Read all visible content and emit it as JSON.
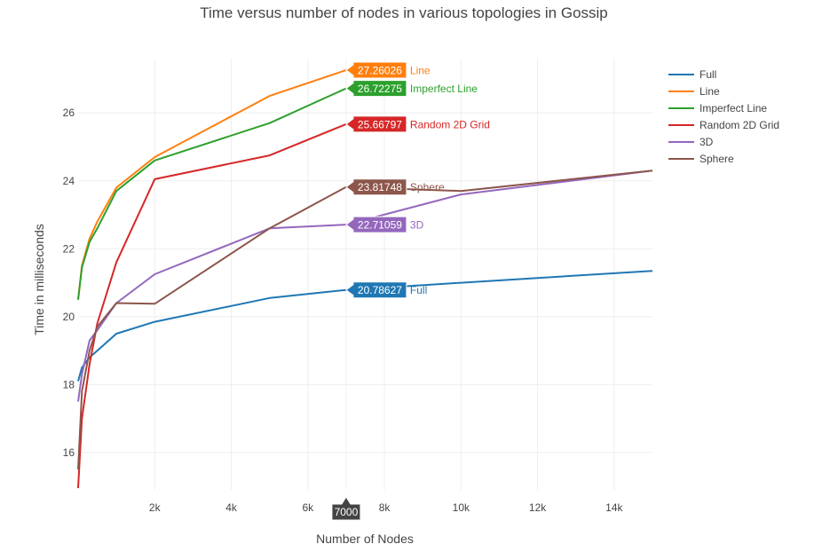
{
  "chart_data": {
    "type": "line",
    "title": "Time versus number of nodes in various topologies in Gossip",
    "xlabel": "Number of Nodes",
    "ylabel": "Time in milliseconds",
    "xlim": [
      0,
      15000
    ],
    "ylim": [
      14.9,
      27.6
    ],
    "xticks": [
      2000,
      4000,
      6000,
      8000,
      10000,
      12000,
      14000
    ],
    "xtick_labels": [
      "2k",
      "4k",
      "6k",
      "8k",
      "10k",
      "12k",
      "14k"
    ],
    "yticks": [
      16,
      18,
      20,
      22,
      24,
      26
    ],
    "ytick_labels": [
      "16",
      "18",
      "20",
      "22",
      "24",
      "26"
    ],
    "grid": true,
    "legend_position": "top-right",
    "hover_x": 7000,
    "hover_x_label": "7000",
    "series": [
      {
        "name": "Full",
        "color": "#1f77b4",
        "x": [
          0,
          100,
          300,
          500,
          1000,
          2000,
          5000,
          7000,
          10000,
          15000
        ],
        "y": [
          18.1,
          18.5,
          18.8,
          19.0,
          19.5,
          19.85,
          20.55,
          20.78627,
          21.0,
          21.35
        ],
        "hover_value": "20.78627"
      },
      {
        "name": "Line",
        "color": "#ff7f0e",
        "x": [
          0,
          100,
          300,
          500,
          1000,
          2000,
          5000,
          7000
        ],
        "y": [
          20.5,
          21.5,
          22.3,
          22.8,
          23.8,
          24.7,
          26.5,
          27.26026
        ],
        "hover_value": "27.26026"
      },
      {
        "name": "Imperfect Line",
        "color": "#2ca02c",
        "x": [
          0,
          100,
          300,
          500,
          1000,
          2000,
          5000,
          7000
        ],
        "y": [
          20.5,
          21.45,
          22.2,
          22.6,
          23.7,
          24.6,
          25.7,
          26.72275
        ],
        "hover_value": "26.72275"
      },
      {
        "name": "Random 2D Grid",
        "color": "#d62728",
        "x": [
          0,
          100,
          300,
          500,
          1000,
          2000,
          5000,
          7000
        ],
        "y": [
          14.95,
          17.0,
          18.6,
          19.8,
          21.6,
          24.05,
          24.75,
          25.66797
        ],
        "hover_value": "25.66797"
      },
      {
        "name": "3D",
        "color": "#9467bd",
        "x": [
          0,
          100,
          300,
          500,
          1000,
          2000,
          5000,
          7000,
          10000,
          15000
        ],
        "y": [
          17.5,
          18.3,
          19.3,
          19.6,
          20.4,
          21.25,
          22.6,
          22.71059,
          23.6,
          24.3
        ],
        "hover_value": "22.71059"
      },
      {
        "name": "Sphere",
        "color": "#8c564b",
        "x": [
          0,
          100,
          300,
          500,
          1000,
          2000,
          5000,
          7000,
          10000,
          15000
        ],
        "y": [
          15.5,
          17.8,
          19.0,
          19.7,
          20.4,
          20.38,
          22.6,
          23.81748,
          23.7,
          24.3
        ],
        "hover_value": "23.81748"
      }
    ]
  }
}
